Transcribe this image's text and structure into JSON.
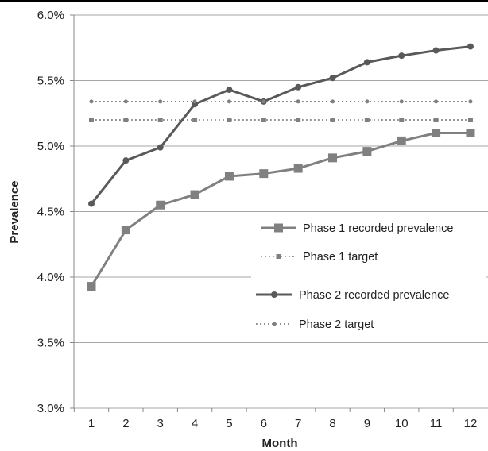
{
  "chart_data": {
    "type": "line",
    "title": "",
    "xlabel": "Month",
    "ylabel": "Prevalence",
    "x": [
      1,
      2,
      3,
      4,
      5,
      6,
      7,
      8,
      9,
      10,
      11,
      12
    ],
    "x_tick_labels": [
      "1",
      "2",
      "3",
      "4",
      "5",
      "6",
      "7",
      "8",
      "9",
      "10",
      "11",
      "12"
    ],
    "ylim": [
      3.0,
      6.0
    ],
    "y_ticks": [
      3.0,
      3.5,
      4.0,
      4.5,
      5.0,
      5.5,
      6.0
    ],
    "y_tick_labels": [
      "3.0%",
      "3.5%",
      "4.0%",
      "4.5%",
      "5.0%",
      "5.5%",
      "6.0%"
    ],
    "grid": "horizontal",
    "legend_position": "lower-right",
    "series": [
      {
        "name": "Phase 1 recorded prevalence",
        "style": "solid",
        "marker": "square",
        "color": "#808080",
        "values": [
          3.93,
          4.36,
          4.55,
          4.63,
          4.77,
          4.79,
          4.83,
          4.91,
          4.96,
          5.04,
          5.1,
          5.1
        ]
      },
      {
        "name": "Phase 1 target",
        "style": "dotted",
        "marker": "square",
        "color": "#808080",
        "values": [
          5.2,
          5.2,
          5.2,
          5.2,
          5.2,
          5.2,
          5.2,
          5.2,
          5.2,
          5.2,
          5.2,
          5.2
        ]
      },
      {
        "name": "Phase 2 recorded prevalence",
        "style": "solid",
        "marker": "circle",
        "color": "#595959",
        "values": [
          4.56,
          4.89,
          4.99,
          5.32,
          5.43,
          5.34,
          5.45,
          5.52,
          5.64,
          5.69,
          5.73,
          5.76
        ]
      },
      {
        "name": "Phase 2 target",
        "style": "dotted",
        "marker": "circle",
        "color": "#808080",
        "values": [
          5.34,
          5.34,
          5.34,
          5.34,
          5.34,
          5.34,
          5.34,
          5.34,
          5.34,
          5.34,
          5.34,
          5.34
        ]
      }
    ]
  }
}
